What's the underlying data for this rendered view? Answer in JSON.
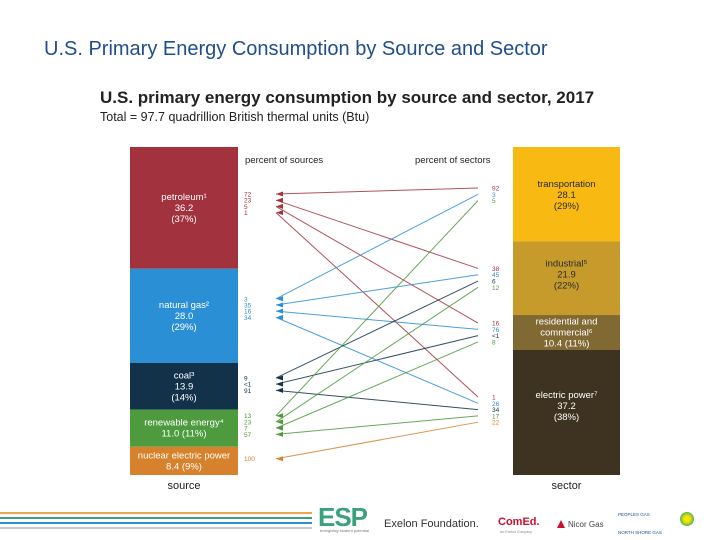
{
  "slide_title": "U.S. Primary Energy Consumption by Source and Sector",
  "chart_data": {
    "type": "sankey",
    "title": "U.S. primary energy consumption by source and sector, 2017",
    "subtitle": "Total = 97.7 quadrillion British thermal units (Btu)",
    "left_header": "percent of sources",
    "right_header": "percent of sectors",
    "left_axis_label": "source",
    "right_axis_label": "sector",
    "sources": [
      {
        "key": "petroleum",
        "name": "petroleum¹",
        "value": "36.2",
        "share": "(37%)",
        "color": "#a3323f",
        "pcts": [
          "72",
          "23",
          "5",
          "1"
        ],
        "flows_to": [
          "transportation",
          "industrial",
          "residential",
          "electric"
        ]
      },
      {
        "key": "natural_gas",
        "name": "natural gas²",
        "value": "28.0",
        "share": "(29%)",
        "color": "#2b8fd6",
        "pcts": [
          "3",
          "35",
          "16",
          "34"
        ],
        "flows_to": [
          "transportation",
          "industrial",
          "residential",
          "electric"
        ]
      },
      {
        "key": "coal",
        "name": "coal³",
        "value": "13.9",
        "share": "(14%)",
        "color": "#12324a",
        "pcts": [
          "9",
          "<1",
          "91"
        ],
        "flows_to": [
          "industrial",
          "residential",
          "electric"
        ]
      },
      {
        "key": "renewable",
        "name": "renewable energy⁴",
        "value": "11.0",
        "share": "(11%)",
        "color": "#4e9a3e",
        "pcts": [
          "13",
          "23",
          "7",
          "57"
        ],
        "flows_to": [
          "transportation",
          "industrial",
          "residential",
          "electric"
        ]
      },
      {
        "key": "nuclear",
        "name": "nuclear electric power",
        "value": "8.4",
        "share": "(9%)",
        "color": "#d6812b",
        "pcts": [
          "100"
        ],
        "flows_to": [
          "electric"
        ]
      }
    ],
    "sectors": [
      {
        "key": "transportation",
        "name": "transportation",
        "value": "28.1",
        "share": "(29%)",
        "color": "#f7b912",
        "pcts": [
          "92",
          "3",
          "5"
        ]
      },
      {
        "key": "industrial",
        "name": "industrial⁵",
        "value": "21.9",
        "share": "(22%)",
        "color": "#c69b2c",
        "pcts": [
          "38",
          "45",
          "6",
          "12"
        ]
      },
      {
        "key": "residential",
        "name": "residential and commercial⁶",
        "value": "10.4",
        "share": "(11%)",
        "color": "#806932",
        "pcts": [
          "16",
          "76",
          "<1",
          "8"
        ]
      },
      {
        "key": "electric",
        "name": "electric power⁷",
        "value": "37.2",
        "share": "(38%)",
        "color": "#3e3220",
        "pcts": [
          "1",
          "26",
          "34",
          "17",
          "22"
        ]
      }
    ]
  },
  "footer": {
    "esp_logo": "ESP",
    "esp_tagline": "energizing student potential",
    "exelon_logo": "Exelon Foundation.",
    "comed_logo": "ComEd.",
    "comed_tagline": "An Exelon Company",
    "nicor_logo": "Nicor Gas",
    "partner_1": "PEOPLES GAS",
    "partner_2": "NORTH SHORE GAS",
    "stripe_colors": [
      "#f2a54a",
      "#3aa27a",
      "#2b8fd6",
      "#c8c8c8"
    ]
  }
}
